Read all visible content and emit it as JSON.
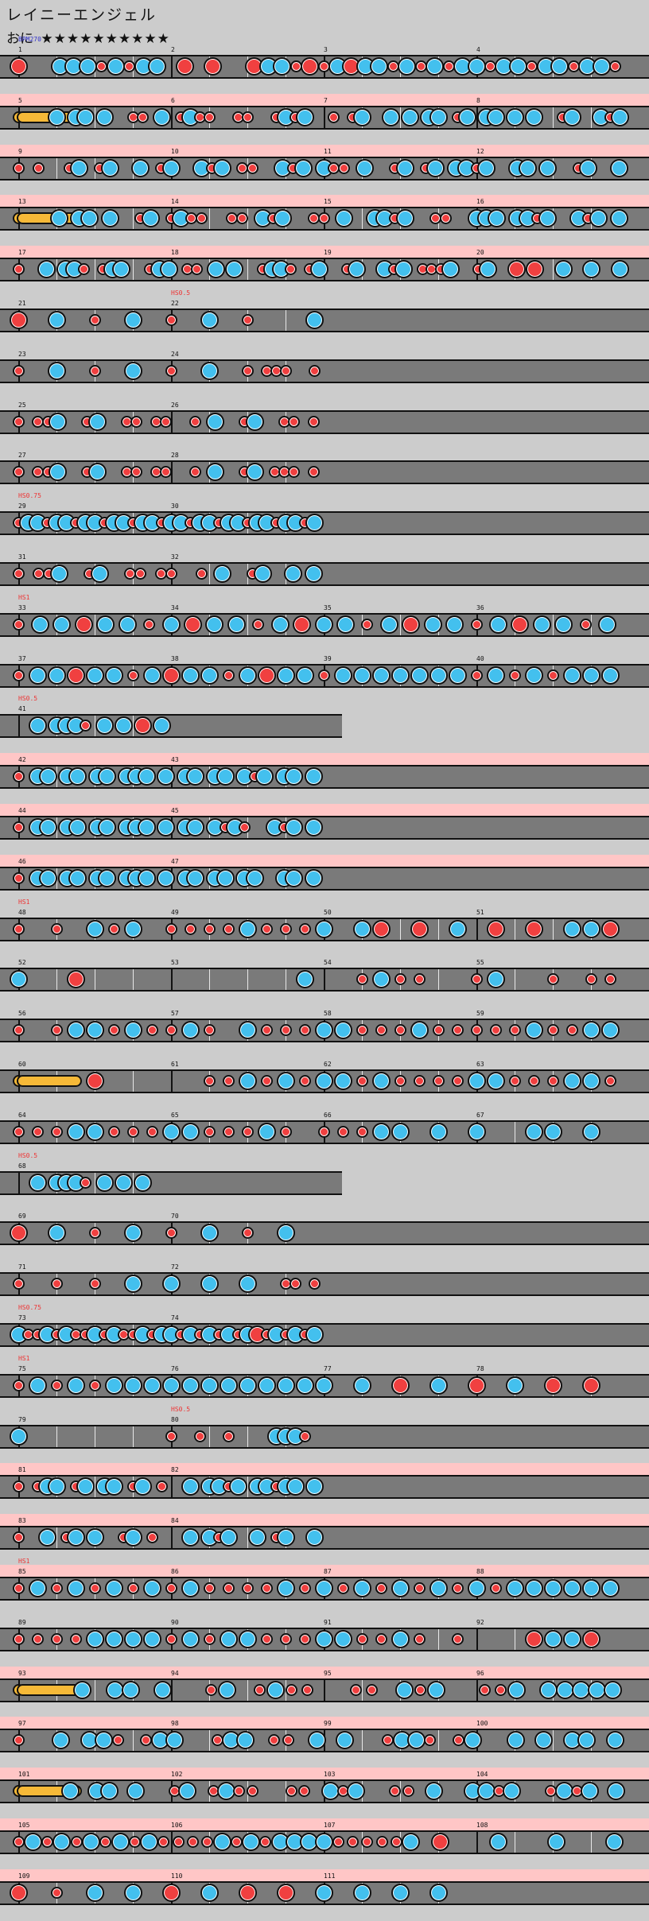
{
  "song": {
    "title": "レイニーエンジェル",
    "course_label": "おに",
    "stars": "★★★★★★★★★★",
    "bpm_label": "BPM270"
  },
  "legend": {
    "don": "red note",
    "ka": "blue note",
    "big": "large note",
    "roll": "drum roll"
  },
  "colors": {
    "don": "#f04040",
    "ka": "#43c0ee",
    "roll": "#f6b938",
    "gogo": "#ffc6c6",
    "lane": "#7a7a7a"
  },
  "rows": [
    {
      "measures": [
        1,
        2,
        3,
        4
      ],
      "gogo": false,
      "events": [
        {
          "m": 0,
          "text": "BPM270",
          "kind": "bpm"
        }
      ],
      "notes": "D..KKKdKdKK.D.D..DKKdDdKDKKdKdKdKKdKKdKKdKKd"
    },
    {
      "measures": [
        5,
        6,
        7,
        8
      ],
      "gogo": true,
      "roll": true,
      "notes": "....K.KK.K..dd.K.dKdd..dd..dKdK..d.dK..K.K.KK.dK.KK.K.K..dK..KdK"
    },
    {
      "measures": [
        9,
        10,
        11,
        12
      ],
      "gogo": true,
      "notes": "d.d..dK.dK..K.dK..KdK.dd..KdK.Kdd.K..dK.dK.KKdK..KK.K..dK..K"
    },
    {
      "measures": [
        13,
        14,
        15,
        16
      ],
      "gogo": true,
      "roll": true,
      "notes": "....K.KK.K..dK.dKdd..dd.KdK..dd.K..KKdK..dd..KKK.KKdK..KdK.K"
    },
    {
      "measures": [
        17,
        18,
        19,
        20
      ],
      "gogo": true,
      "notes": "d..K.KKd.dKK..dKK.dd.K.K..dKKd.dK..dK..KdK.dddK..dK..D.D..K..K..K"
    },
    {
      "measures": [
        21,
        22
      ],
      "gogo": false,
      "events": [
        {
          "m": 1,
          "text": "HS0.5"
        }
      ],
      "notes": "D...K...d...K...d...K...d......K"
    },
    {
      "measures": [
        23,
        24
      ],
      "gogo": false,
      "notes": "d...K...d...K...d...K...d.ddd..d"
    },
    {
      "measures": [
        25,
        26
      ],
      "gogo": false,
      "notes": "d.ddK..dK..dd.dd..d.K..dK..dd.d"
    },
    {
      "measures": [
        27,
        28
      ],
      "gogo": false,
      "notes": "d.ddK..dK..dd.dd..d.K..dK.ddd.d"
    },
    {
      "measures": [
        29,
        30
      ],
      "gogo": false,
      "events": [
        {
          "m": 0,
          "text": "HS0.75"
        }
      ],
      "notes": "dKKdKKdKKdKKdKKdKKdKKdKKdKKdKKdK"
    },
    {
      "measures": [
        31,
        32
      ],
      "gogo": false,
      "notes": "d.ddK..dK..dd.dd..d.K..dK..K.K"
    },
    {
      "measures": [
        33,
        34,
        35,
        36
      ],
      "gogo": false,
      "events": [
        {
          "m": 0,
          "text": "HS1"
        }
      ],
      "notes": "dKKDKKdKDKKdKDKKdKDKKdKDKKdK"
    },
    {
      "measures": [
        37,
        38,
        39,
        40
      ],
      "gogo": false,
      "notes": "dKKDKKdKDKKdKDKKdKKKKKKKdKdKdKKK"
    },
    {
      "measures": [
        41
      ],
      "gogo": false,
      "width": 430,
      "events": [
        {
          "m": 0,
          "text": "HS0.5"
        }
      ],
      "notes": "..K.KKKd.K.K.D.K"
    },
    {
      "measures": [
        42,
        43
      ],
      "gogo": true,
      "notes": "d.KK.KK.KK.KKK.K.KK.KK.KdK.KK.K"
    },
    {
      "measures": [
        44,
        45
      ],
      "gogo": true,
      "notes": "d.KK.KK.KK.KKK.K.KK.KdKd..KdK.K"
    },
    {
      "measures": [
        46,
        47
      ],
      "gogo": true,
      "notes": "d.KK.KK.KK.KKK.K.KK.KK.KK..KK.K"
    },
    {
      "measures": [
        48,
        49,
        50,
        51
      ],
      "gogo": false,
      "events": [
        {
          "m": 0,
          "text": "HS1"
        }
      ],
      "notes": "d.d.KdK.ddddKdddK.KD.D.K.D.D.KKD"
    },
    {
      "measures": [
        52,
        53,
        54,
        55
      ],
      "gogo": false,
      "notes": "K..D...........K..dKdd..dK..d.dd"
    },
    {
      "measures": [
        56,
        57,
        58,
        59
      ],
      "gogo": false,
      "notes": "d.dKKdKddKd.KdddKKdddKdddddKddKK"
    },
    {
      "measures": [
        60,
        61,
        62,
        63
      ],
      "gogo": false,
      "roll": true,
      "notes": "....D.....ddKdKdKKdKddddKKdddKKd"
    },
    {
      "measures": [
        64,
        65,
        66,
        67
      ],
      "gogo": false,
      "notes": "dddKKdddKKdddKd.dddKK.K.K..KK.K."
    },
    {
      "measures": [
        68
      ],
      "gogo": false,
      "width": 430,
      "events": [
        {
          "m": 0,
          "text": "HS0.5"
        }
      ],
      "notes": "..K.KKKd.K.K.K.."
    },
    {
      "measures": [
        69,
        70
      ],
      "gogo": false,
      "notes": "D...K...d...K...d...K...d...K..."
    },
    {
      "measures": [
        71,
        72
      ],
      "gogo": false,
      "notes": "d...d...d...K...K...K...K...dd.d"
    },
    {
      "measures": [
        73,
        74
      ],
      "gogo": false,
      "events": [
        {
          "m": 0,
          "text": "HS0.75"
        }
      ],
      "notes": "KddKdKddKdKddKdKKdKdKdKdKDdKdKdK"
    },
    {
      "measures": [
        75,
        76,
        77,
        78
      ],
      "gogo": false,
      "events": [
        {
          "m": 0,
          "text": "HS1"
        }
      ],
      "notes": "dKdKdKKKKKKKKKKKK.K.D.K.D.K.D.D."
    },
    {
      "measures": [
        79,
        80
      ],
      "gogo": false,
      "events": [
        {
          "m": 1,
          "text": "HS0.5"
        }
      ],
      "notes": "K...............d..d..d....KKKd."
    },
    {
      "measures": [
        81,
        82
      ],
      "gogo": true,
      "notes": "d.dKK.dK.KK.dK.d..K.KKdK.KKdKK.K"
    },
    {
      "measures": [
        83,
        84
      ],
      "gogo": true,
      "notes": "d..K.dK.K..dK.d...K.KdK..K.dK..K"
    },
    {
      "measures": [
        85,
        86,
        87,
        88
      ],
      "gogo": true,
      "events": [
        {
          "m": 0,
          "text": "HS1"
        }
      ],
      "notes": "dKdKdKdKdKddddKdKdKdKdKdKdKKKKKK"
    },
    {
      "measures": [
        89,
        90,
        91,
        92
      ],
      "gogo": false,
      "notes": "ddddKKKKdKdKKdddKKddKd.d...DKKD."
    },
    {
      "measures": [
        93,
        94,
        95,
        96
      ],
      "gogo": true,
      "roll": true,
      "notes": "....K.KK.K..dK.dKdd..dd.KdK..ddK.KKKKK"
    },
    {
      "measures": [
        97,
        98,
        99,
        100
      ],
      "gogo": true,
      "notes": "d..K.KKd.dKK..dKK.dd.K.K..dKKd.dK..K.K.KK.K"
    },
    {
      "measures": [
        101,
        102,
        103,
        104
      ],
      "gogo": true,
      "roll": true,
      "notes": "....K.KK.K..dK.dKdd..dd.KdK..dd.K..KKdK..dKdK.K"
    },
    {
      "measures": [
        105,
        106,
        107,
        108
      ],
      "gogo": true,
      "notes": "dKdKdKdKdKddddKdKdKKKKdddddK.D...K...K...K"
    },
    {
      "measures": [
        109,
        110,
        111
      ],
      "gogo": true,
      "notes": "DdKKDKDDKKKK"
    }
  ]
}
